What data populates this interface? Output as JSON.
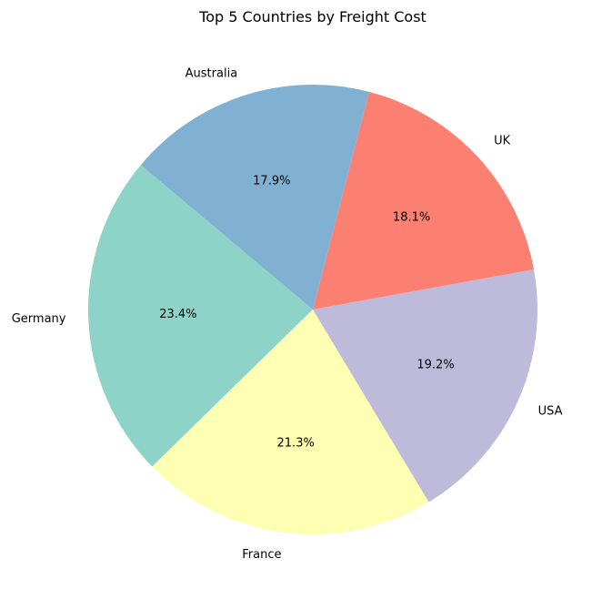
{
  "chart_data": {
    "type": "pie",
    "title": "Top 5 Countries by Freight Cost",
    "categories": [
      "Germany",
      "France",
      "USA",
      "UK",
      "Australia"
    ],
    "values": [
      23.4,
      21.3,
      19.2,
      18.1,
      17.9
    ],
    "value_labels": [
      "23.4%",
      "21.3%",
      "19.2%",
      "18.1%",
      "17.9%"
    ],
    "colors": [
      "#8dd3c7",
      "#ffffb3",
      "#bebada",
      "#fb8072",
      "#80b1d3"
    ],
    "start_angle_deg": 140,
    "direction": "counterclockwise",
    "legend": "none"
  }
}
